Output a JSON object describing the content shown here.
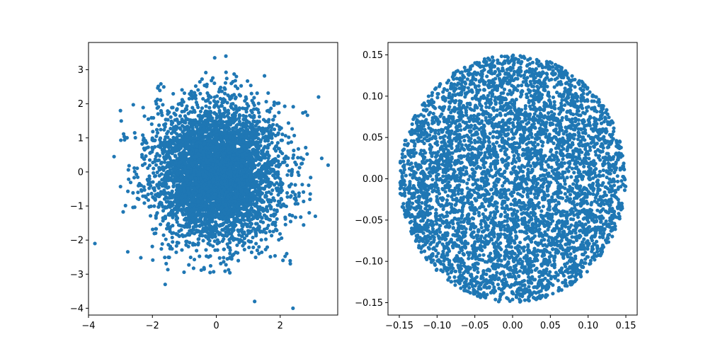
{
  "chart_data": [
    {
      "type": "scatter",
      "description_hint": "",
      "marker_color": "#1f77b4",
      "point_count": 5000,
      "distribution": {
        "kind": "normal",
        "mean_x": 0,
        "mean_y": 0,
        "std_x": 1,
        "std_y": 1
      },
      "outliers": [
        {
          "x": -3.8,
          "y": -2.1
        },
        {
          "x": 2.4,
          "y": -4.0
        },
        {
          "x": 1.2,
          "y": -3.8
        },
        {
          "x": -1.6,
          "y": -3.3
        },
        {
          "x": 3.5,
          "y": 0.2
        },
        {
          "x": 3.3,
          "y": 0.4
        },
        {
          "x": 0.3,
          "y": 3.4
        },
        {
          "x": -0.05,
          "y": 3.35
        },
        {
          "x": 3.2,
          "y": 2.2
        },
        {
          "x": -3.2,
          "y": 0.45
        },
        {
          "x": -3.0,
          "y": 1.8
        },
        {
          "x": 3.1,
          "y": -1.3
        }
      ],
      "xlim": [
        -4.0,
        3.8
      ],
      "ylim": [
        -4.2,
        3.8
      ],
      "xticks": [
        -4,
        -2,
        0,
        2
      ],
      "xtick_labels": [
        "−4",
        "−2",
        "0",
        "2"
      ],
      "yticks": [
        -4,
        -3,
        -2,
        -1,
        0,
        1,
        2,
        3
      ],
      "ytick_labels": [
        "−4",
        "−3",
        "−2",
        "−1",
        "0",
        "1",
        "2",
        "3"
      ],
      "title": "",
      "xlabel": "",
      "ylabel": "",
      "grid": false,
      "legend": "none"
    },
    {
      "type": "scatter",
      "marker_color": "#1f77b4",
      "point_count": 5000,
      "distribution": {
        "kind": "uniform-disk",
        "center_x": 0,
        "center_y": 0,
        "radius": 0.15
      },
      "xlim": [
        -0.165,
        0.165
      ],
      "ylim": [
        -0.165,
        0.165
      ],
      "xticks": [
        -0.15,
        -0.1,
        -0.05,
        0.0,
        0.05,
        0.1,
        0.15
      ],
      "xtick_labels": [
        "−0.15",
        "−0.10",
        "−0.05",
        "0.00",
        "0.05",
        "0.10",
        "0.15"
      ],
      "yticks": [
        -0.15,
        -0.1,
        -0.05,
        0.0,
        0.05,
        0.1,
        0.15
      ],
      "ytick_labels": [
        "−0.15",
        "−0.10",
        "−0.05",
        "0.00",
        "0.05",
        "0.10",
        "0.15"
      ],
      "title": "",
      "xlabel": "",
      "ylabel": "",
      "grid": false,
      "legend": "none"
    }
  ]
}
